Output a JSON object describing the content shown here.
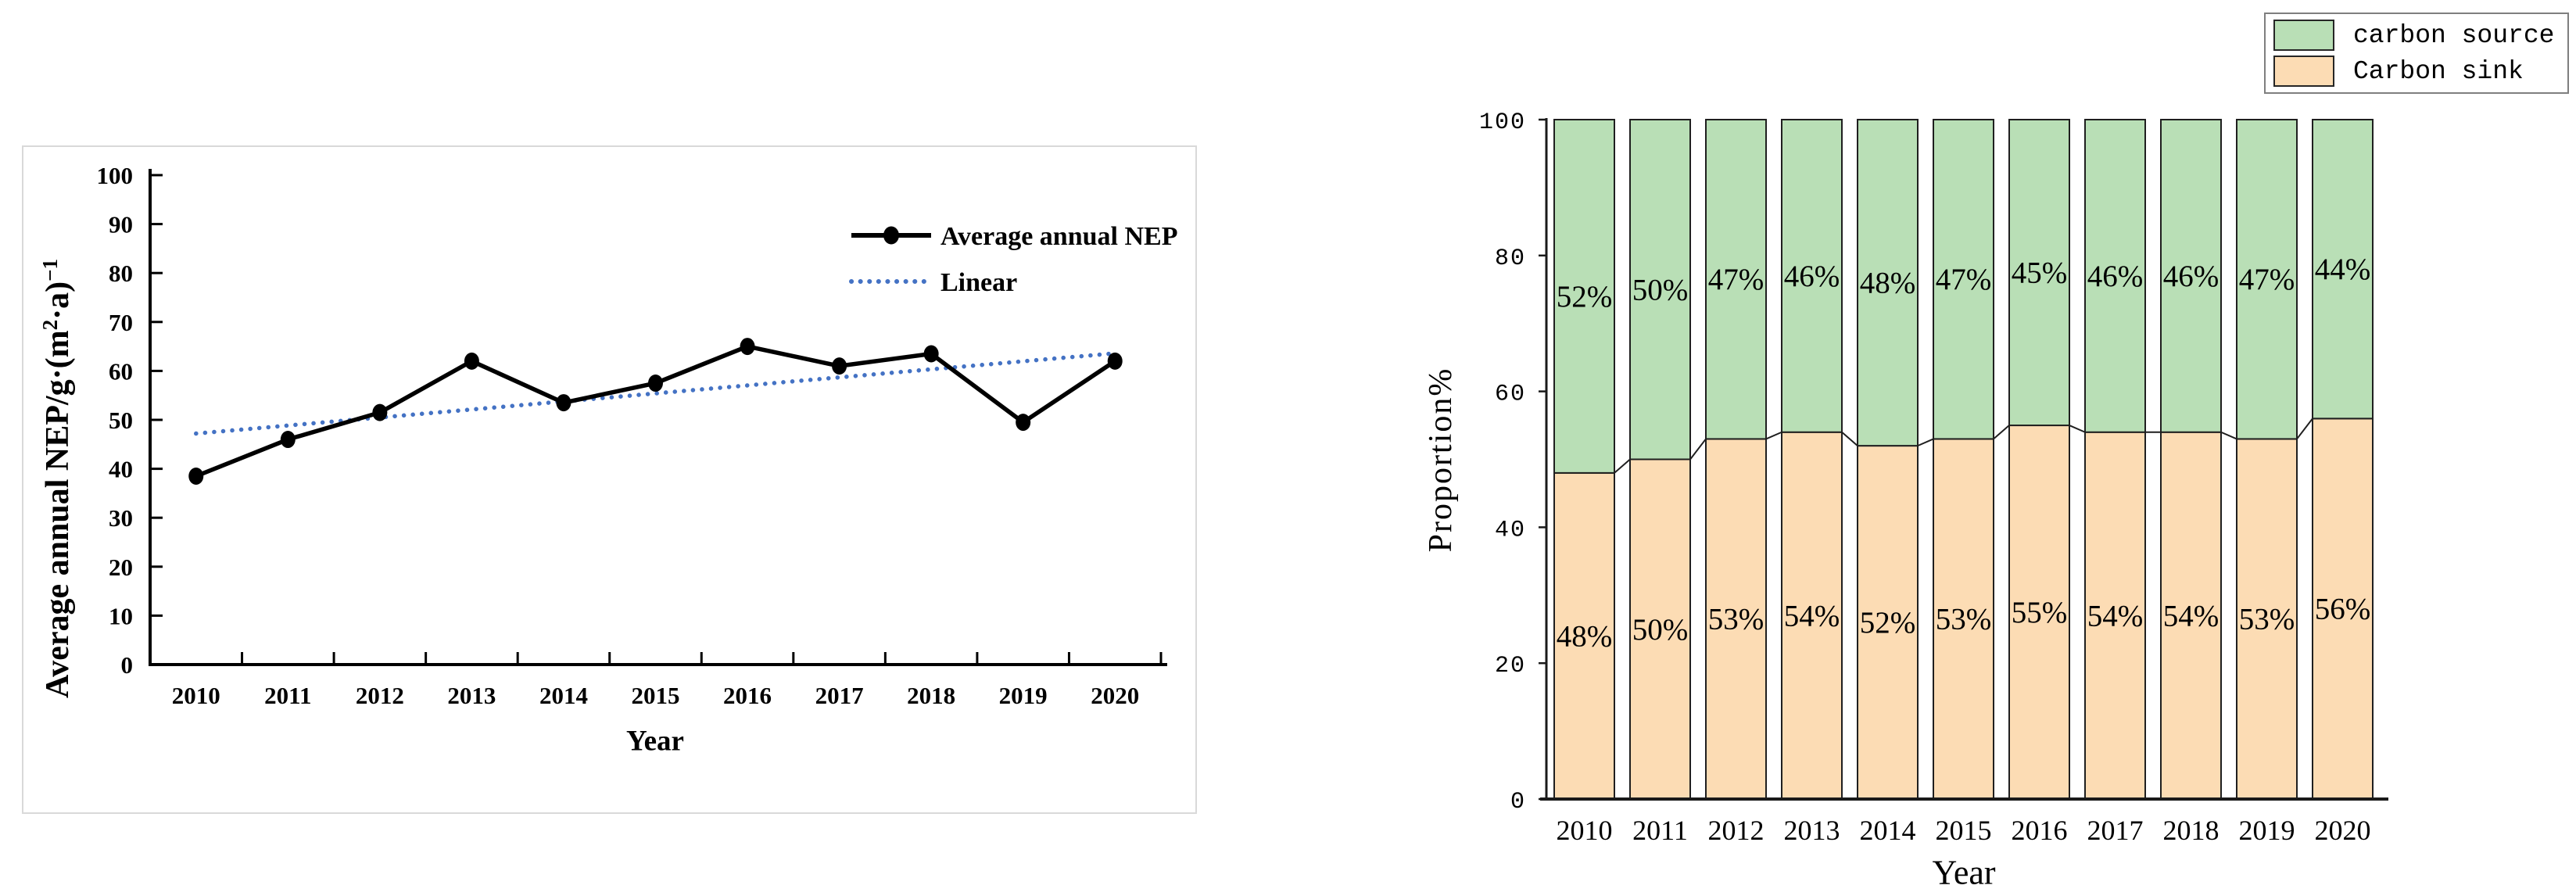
{
  "chart_data": [
    {
      "type": "line",
      "x": [
        "2010",
        "2011",
        "2012",
        "2013",
        "2014",
        "2015",
        "2016",
        "2017",
        "2018",
        "2019",
        "2020"
      ],
      "series": [
        {
          "name": "Average annual NEP",
          "color": "#000000",
          "marker": "filled-circle",
          "values": [
            38.5,
            46,
            51.5,
            62,
            53.5,
            57.5,
            65,
            61,
            63.5,
            49.5,
            62
          ]
        },
        {
          "name": "Linear",
          "color": "#4472c4",
          "style": "dotted",
          "trend_start": 47.2,
          "trend_end": 63.6
        }
      ],
      "ylabel": {
        "prefix": "Average annual NEP/g·(m",
        "sup1": "2",
        "mid": "·a)",
        "sup2": "−1"
      },
      "xlabel": "Year",
      "ylim": [
        0,
        100
      ],
      "yticks": [
        "0",
        "10",
        "20",
        "30",
        "40",
        "50",
        "60",
        "70",
        "80",
        "90",
        "100"
      ],
      "legend": [
        "Average annual NEP",
        "Linear"
      ],
      "legend_position": "inside-top-right",
      "grid": false
    },
    {
      "type": "bar",
      "stacked": true,
      "categories": [
        "2010",
        "2011",
        "2012",
        "2013",
        "2014",
        "2015",
        "2016",
        "2017",
        "2018",
        "2019",
        "2020"
      ],
      "series": [
        {
          "name": "Carbon sink",
          "color": "#fcdcb4",
          "values": [
            48,
            50,
            53,
            54,
            52,
            53,
            55,
            54,
            54,
            53,
            56
          ],
          "labels": [
            "48%",
            "50%",
            "53%",
            "54%",
            "52%",
            "53%",
            "55%",
            "54%",
            "54%",
            "53%",
            "56%"
          ]
        },
        {
          "name": "carbon source",
          "color": "#b9dfb6",
          "values": [
            52,
            50,
            47,
            46,
            48,
            47,
            45,
            46,
            46,
            47,
            44
          ],
          "labels": [
            "52%",
            "50%",
            "47%",
            "46%",
            "48%",
            "47%",
            "45%",
            "46%",
            "46%",
            "47%",
            "44%"
          ]
        }
      ],
      "legend": [
        {
          "label": "carbon source",
          "color": "#b9dfb6"
        },
        {
          "label": "Carbon sink",
          "color": "#fcdcb4"
        }
      ],
      "ylabel": "Proportion%",
      "xlabel": "Year",
      "ylim": [
        0,
        100
      ],
      "yticks": [
        "0",
        "20",
        "40",
        "60",
        "80",
        "100"
      ],
      "bar_outline": "#1f1f1f",
      "series_lines": true,
      "grid": false
    }
  ]
}
